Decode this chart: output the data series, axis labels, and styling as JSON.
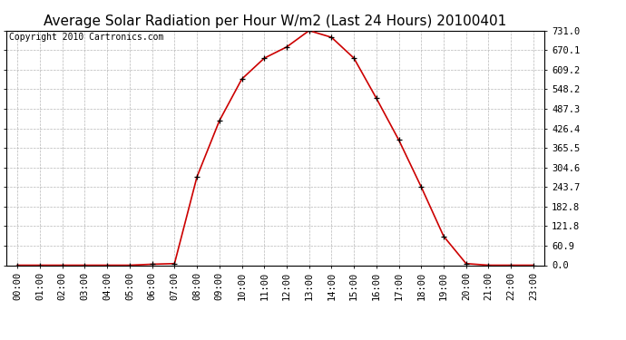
{
  "title": "Average Solar Radiation per Hour W/m2 (Last 24 Hours) 20100401",
  "copyright": "Copyright 2010 Cartronics.com",
  "hours": [
    "00:00",
    "01:00",
    "02:00",
    "03:00",
    "04:00",
    "05:00",
    "06:00",
    "07:00",
    "08:00",
    "09:00",
    "10:00",
    "11:00",
    "12:00",
    "13:00",
    "14:00",
    "15:00",
    "16:00",
    "17:00",
    "18:00",
    "19:00",
    "20:00",
    "21:00",
    "22:00",
    "23:00"
  ],
  "values": [
    0.0,
    0.0,
    0.0,
    0.0,
    0.0,
    0.0,
    3.0,
    5.0,
    275.0,
    450.0,
    580.0,
    645.0,
    680.0,
    731.0,
    710.0,
    645.0,
    520.0,
    390.0,
    243.7,
    90.0,
    5.0,
    0.0,
    0.0,
    0.0
  ],
  "line_color": "#cc0000",
  "marker_color": "#000000",
  "bg_color": "#ffffff",
  "grid_color": "#b0b0b0",
  "yticks": [
    0.0,
    60.9,
    121.8,
    182.8,
    243.7,
    304.6,
    365.5,
    426.4,
    487.3,
    548.2,
    609.2,
    670.1,
    731.0
  ],
  "ylim": [
    0,
    731.0
  ],
  "title_fontsize": 11,
  "copyright_fontsize": 7,
  "tick_fontsize": 7.5
}
